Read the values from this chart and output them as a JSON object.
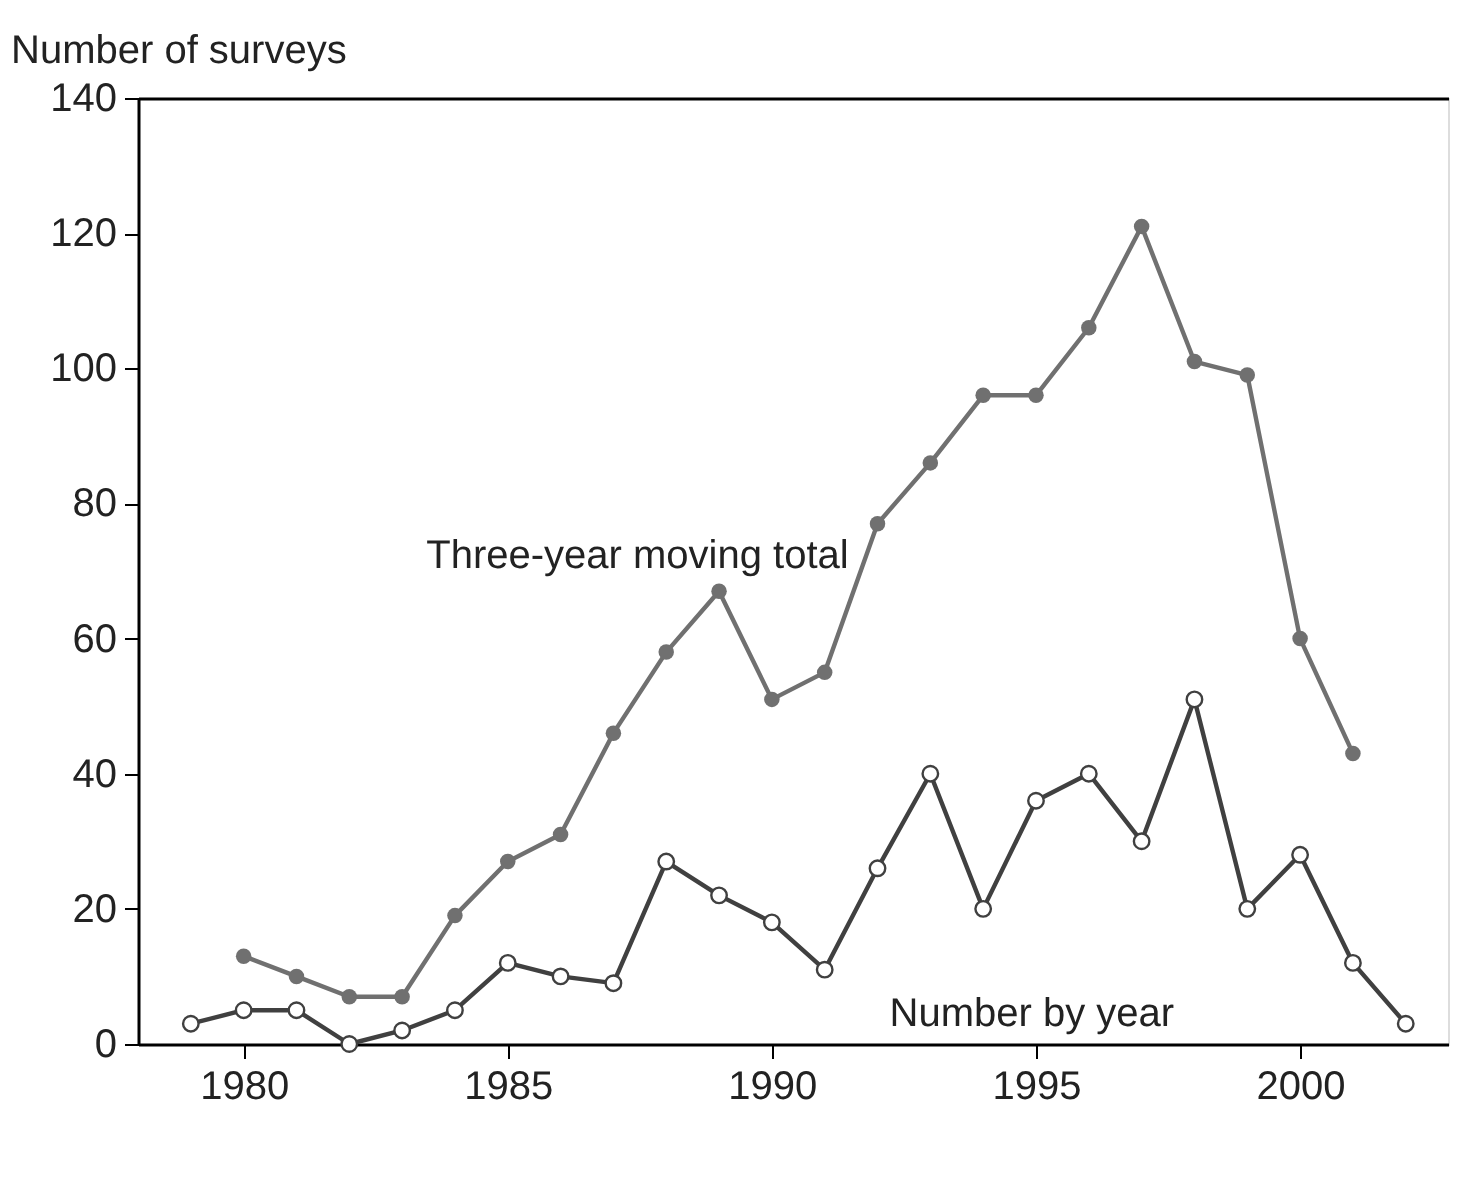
{
  "chart_data": {
    "type": "line",
    "ylabel": "Number of surveys",
    "xlim": [
      1978,
      2002.8
    ],
    "xticks": [
      1980,
      1985,
      1990,
      1995,
      2000
    ],
    "ylim": [
      0,
      140
    ],
    "yticks": [
      0,
      20,
      40,
      60,
      80,
      100,
      120,
      140
    ],
    "grid": false,
    "marker": "circle",
    "line_style": "solid",
    "series": [
      {
        "name": "Three-year moving total",
        "color": "#707070",
        "x": [
          1980,
          1981,
          1982,
          1983,
          1984,
          1985,
          1986,
          1987,
          1988,
          1989,
          1990,
          1991,
          1992,
          1993,
          1994,
          1995,
          1996,
          1997,
          1998,
          1999,
          2000,
          2001
        ],
        "values": [
          13,
          10,
          7,
          7,
          19,
          27,
          31,
          46,
          58,
          67,
          51,
          55,
          77,
          86,
          96,
          96,
          106,
          121,
          101,
          99,
          60,
          43
        ]
      },
      {
        "name": "Number by year",
        "color": "#404040",
        "x": [
          1979,
          1980,
          1981,
          1982,
          1983,
          1984,
          1985,
          1986,
          1987,
          1988,
          1989,
          1990,
          1991,
          1992,
          1993,
          1994,
          1995,
          1996,
          1997,
          1998,
          1999,
          2000,
          2001,
          2002
        ],
        "values": [
          3,
          5,
          5,
          0,
          2,
          5,
          12,
          10,
          9,
          27,
          22,
          18,
          11,
          26,
          40,
          20,
          36,
          40,
          30,
          51,
          20,
          28,
          12,
          3
        ]
      }
    ]
  }
}
